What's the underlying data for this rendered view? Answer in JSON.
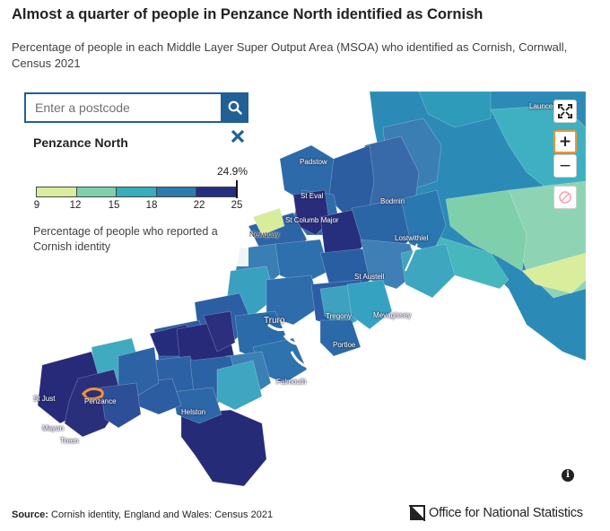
{
  "header": {
    "title": "Almost a quarter of people in Penzance North identified as Cornish",
    "subtitle": "Percentage of people in each Middle Layer Super Output Area (MSOA) who identified as Cornish, Cornwall, Census 2021"
  },
  "search": {
    "placeholder": "Enter a postcode"
  },
  "info_panel": {
    "area_name": "Penzance North",
    "value_label": "24.9%",
    "value": 24.9,
    "legend_ticks": [
      "9",
      "12",
      "15",
      "18",
      "22",
      "25"
    ],
    "legend_colors": [
      "#d9ed9c",
      "#7fcfab",
      "#35aebe",
      "#2b7bb0",
      "#252f80"
    ],
    "legend_description": "Percentage of people who reported a Cornish identity"
  },
  "map": {
    "place_labels": [
      "Launceston",
      "Padstow",
      "St Eval",
      "Bodmin",
      "St Columb Major",
      "Newquay",
      "Lostwithiel",
      "St Austell",
      "Mevagissey",
      "Tregony",
      "Truro",
      "Portloe",
      "Falmouth",
      "St Just",
      "Penzance",
      "Helston",
      "Mayon",
      "Treen"
    ],
    "highlight_area": "Penzance North",
    "highlight_color": "#f39431"
  },
  "controls": {
    "fullscreen": "expand-icon",
    "zoom_in": "+",
    "zoom_out": "−",
    "reset": "no-entry-icon",
    "info": "i"
  },
  "footer": {
    "source_label": "Source:",
    "source_text": "Cornish identity, England and Wales: Census 2021",
    "logo_text_1": "Office for ",
    "logo_text_2": "National Statistics"
  }
}
